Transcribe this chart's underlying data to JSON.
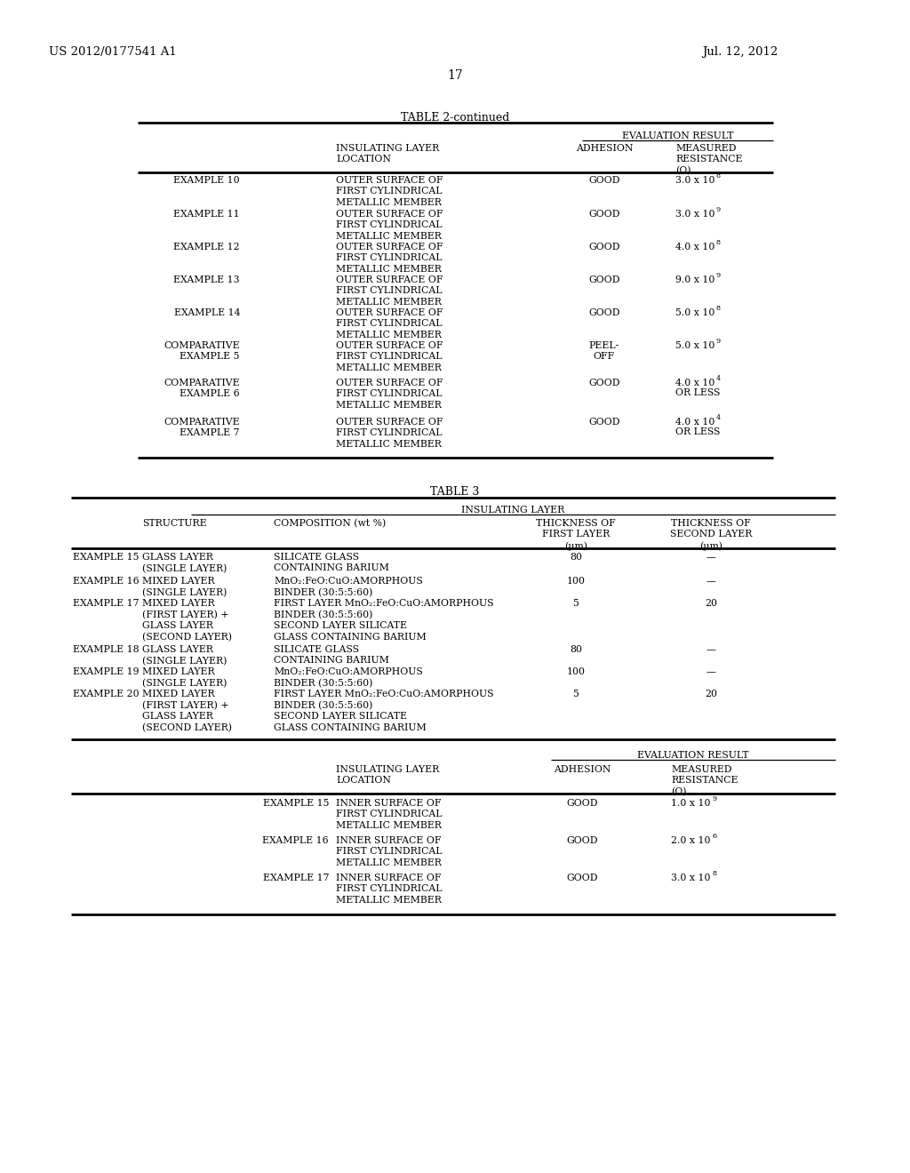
{
  "background_color": "#ffffff",
  "patent_number": "US 2012/0177541 A1",
  "patent_date": "Jul. 12, 2012",
  "page_number": "17",
  "table2_title": "TABLE 2-continued",
  "table3_title": "TABLE 3",
  "table2_rows": [
    {
      "example": "EXAMPLE 10",
      "location": "OUTER SURFACE OF\nFIRST CYLINDRICAL\nMETALLIC MEMBER",
      "adhesion": "GOOD",
      "res_base": "3.0 x 10",
      "res_sup": "8",
      "res_extra": ""
    },
    {
      "example": "EXAMPLE 11",
      "location": "OUTER SURFACE OF\nFIRST CYLINDRICAL\nMETALLIC MEMBER",
      "adhesion": "GOOD",
      "res_base": "3.0 x 10",
      "res_sup": "9",
      "res_extra": ""
    },
    {
      "example": "EXAMPLE 12",
      "location": "OUTER SURFACE OF\nFIRST CYLINDRICAL\nMETALLIC MEMBER",
      "adhesion": "GOOD",
      "res_base": "4.0 x 10",
      "res_sup": "8",
      "res_extra": ""
    },
    {
      "example": "EXAMPLE 13",
      "location": "OUTER SURFACE OF\nFIRST CYLINDRICAL\nMETALLIC MEMBER",
      "adhesion": "GOOD",
      "res_base": "9.0 x 10",
      "res_sup": "9",
      "res_extra": ""
    },
    {
      "example": "EXAMPLE 14",
      "location": "OUTER SURFACE OF\nFIRST CYLINDRICAL\nMETALLIC MEMBER",
      "adhesion": "GOOD",
      "res_base": "5.0 x 10",
      "res_sup": "8",
      "res_extra": ""
    },
    {
      "example": "COMPARATIVE\nEXAMPLE 5",
      "location": "OUTER SURFACE OF\nFIRST CYLINDRICAL\nMETALLIC MEMBER",
      "adhesion": "PEEL-\nOFF",
      "res_base": "5.0 x 10",
      "res_sup": "9",
      "res_extra": ""
    },
    {
      "example": "COMPARATIVE\nEXAMPLE 6",
      "location": "OUTER SURFACE OF\nFIRST CYLINDRICAL\nMETALLIC MEMBER",
      "adhesion": "GOOD",
      "res_base": "4.0 x 10",
      "res_sup": "4",
      "res_extra": "OR LESS"
    },
    {
      "example": "COMPARATIVE\nEXAMPLE 7",
      "location": "OUTER SURFACE OF\nFIRST CYLINDRICAL\nMETALLIC MEMBER",
      "adhesion": "GOOD",
      "res_base": "4.0 x 10",
      "res_sup": "4",
      "res_extra": "OR LESS"
    }
  ],
  "table3_rows": [
    {
      "example": "EXAMPLE 15",
      "structure": "GLASS LAYER\n(SINGLE LAYER)",
      "composition": "SILICATE GLASS\nCONTAINING BARIUM",
      "thick1": "80",
      "thick2": "—"
    },
    {
      "example": "EXAMPLE 16",
      "structure": "MIXED LAYER\n(SINGLE LAYER)",
      "composition": "MnO₂:FeO:CuO:AMORPHOUS\nBINDER (30:5:5:60)",
      "thick1": "100",
      "thick2": "—"
    },
    {
      "example": "EXAMPLE 17",
      "structure": "MIXED LAYER\n(FIRST LAYER) +\nGLASS LAYER\n(SECOND LAYER)",
      "composition": "FIRST LAYER MnO₂:FeO:CuO:AMORPHOUS\nBINDER (30:5:5:60)\nSECOND LAYER SILICATE\nGLASS CONTAINING BARIUM",
      "thick1": "5",
      "thick2": "20"
    },
    {
      "example": "EXAMPLE 18",
      "structure": "GLASS LAYER\n(SINGLE LAYER)",
      "composition": "SILICATE GLASS\nCONTAINING BARIUM",
      "thick1": "80",
      "thick2": "—"
    },
    {
      "example": "EXAMPLE 19",
      "structure": "MIXED LAYER\n(SINGLE LAYER)",
      "composition": "MnO₂:FeO:CuO:AMORPHOUS\nBINDER (30:5:5:60)",
      "thick1": "100",
      "thick2": "—"
    },
    {
      "example": "EXAMPLE 20",
      "structure": "MIXED LAYER\n(FIRST LAYER) +\nGLASS LAYER\n(SECOND LAYER)",
      "composition": "FIRST LAYER MnO₂:FeO:CuO:AMORPHOUS\nBINDER (30:5:5:60)\nSECOND LAYER SILICATE\nGLASS CONTAINING BARIUM",
      "thick1": "5",
      "thick2": "20"
    }
  ],
  "table3_eval_rows": [
    {
      "example": "EXAMPLE 15",
      "location": "INNER SURFACE OF\nFIRST CYLINDRICAL\nMETALLIC MEMBER",
      "adhesion": "GOOD",
      "res_base": "1.0 x 10",
      "res_sup": "9"
    },
    {
      "example": "EXAMPLE 16",
      "location": "INNER SURFACE OF\nFIRST CYLINDRICAL\nMETALLIC MEMBER",
      "adhesion": "GOOD",
      "res_base": "2.0 x 10",
      "res_sup": "6"
    },
    {
      "example": "EXAMPLE 17",
      "location": "INNER SURFACE OF\nFIRST CYLINDRICAL\nMETALLIC MEMBER",
      "adhesion": "GOOD",
      "res_base": "3.0 x 10",
      "res_sup": "8"
    }
  ]
}
